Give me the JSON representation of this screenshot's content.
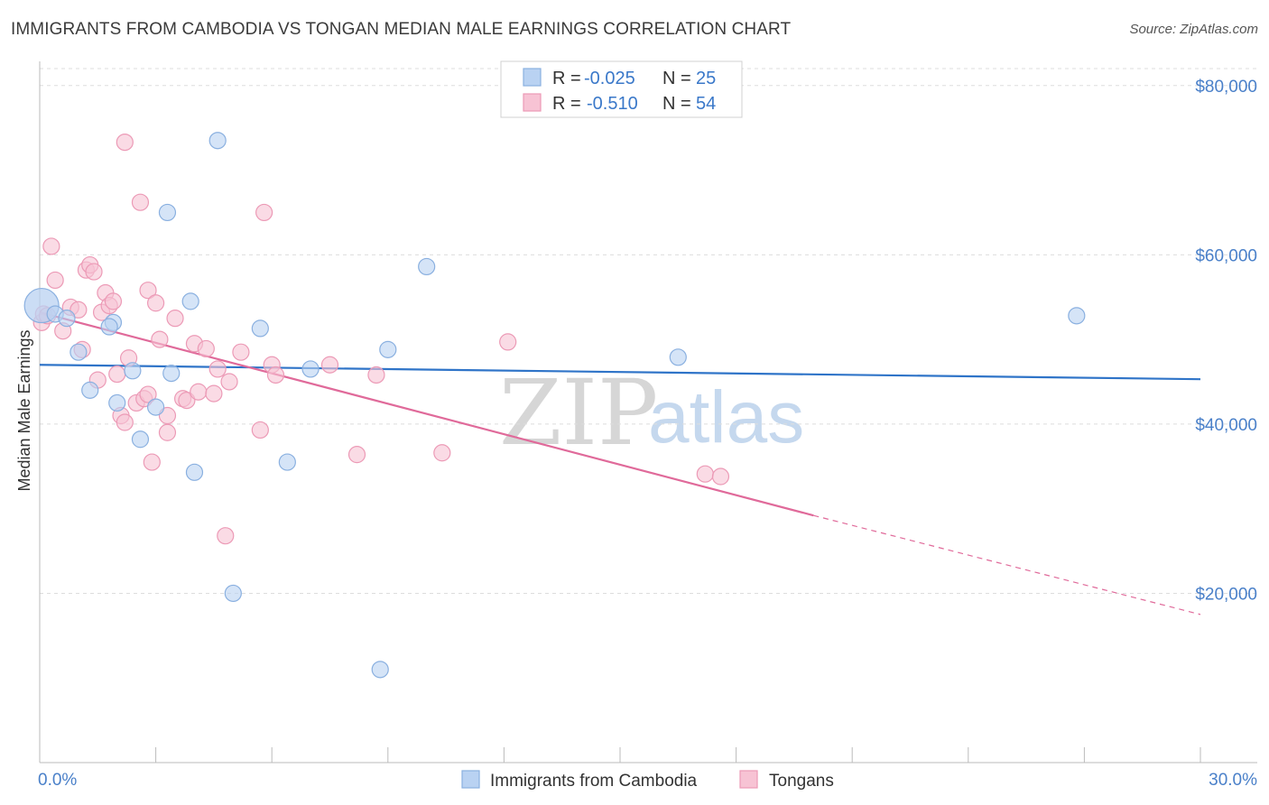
{
  "title": "IMMIGRANTS FROM CAMBODIA VS TONGAN MEDIAN MALE EARNINGS CORRELATION CHART",
  "source": "Source: ZipAtlas.com",
  "watermark": {
    "zip": "ZIP",
    "atlas": "atlas"
  },
  "colors": {
    "blue_fill": "#b9d2f2",
    "blue_stroke": "#8ab0e0",
    "blue_line": "#2f74c8",
    "pink_fill": "#f7c3d4",
    "pink_stroke": "#ec9ab6",
    "pink_line": "#e06a9a",
    "grid": "#dddddd",
    "tick_label": "#4a80c9"
  },
  "legend": {
    "rows": [
      {
        "r_label": "R =",
        "r_value": "-0.025",
        "n_label": "N =",
        "n_value": "25"
      },
      {
        "r_label": "R =",
        "r_value": "-0.510",
        "n_label": "N =",
        "n_value": "54"
      }
    ]
  },
  "bottom_legend": [
    {
      "label": "Immigrants from Cambodia"
    },
    {
      "label": "Tongans"
    }
  ],
  "chart_data": {
    "type": "scatter",
    "title": "IMMIGRANTS FROM CAMBODIA VS TONGAN MEDIAN MALE EARNINGS CORRELATION CHART",
    "xlabel": "",
    "ylabel": "Median Male Earnings",
    "xlim": [
      0,
      30
    ],
    "ylim": [
      0,
      82000
    ],
    "x_tick_labels": [
      "0.0%",
      "30.0%"
    ],
    "y_ticks": [
      20000,
      40000,
      60000,
      80000
    ],
    "y_tick_labels": [
      "$20,000",
      "$40,000",
      "$60,000",
      "$80,000"
    ],
    "grid": true,
    "legend_position": "top-center",
    "series": [
      {
        "name": "Immigrants from Cambodia",
        "points": [
          [
            0.05,
            54000
          ],
          [
            0.4,
            53000
          ],
          [
            0.7,
            52500
          ],
          [
            1.0,
            48500
          ],
          [
            1.3,
            44000
          ],
          [
            1.9,
            52000
          ],
          [
            1.8,
            51500
          ],
          [
            2.0,
            42500
          ],
          [
            2.4,
            46300
          ],
          [
            2.6,
            38200
          ],
          [
            3.0,
            42000
          ],
          [
            3.3,
            65000
          ],
          [
            3.4,
            46000
          ],
          [
            3.9,
            54500
          ],
          [
            4.0,
            34300
          ],
          [
            4.6,
            73500
          ],
          [
            5.0,
            20000
          ],
          [
            5.7,
            51300
          ],
          [
            6.4,
            35500
          ],
          [
            7.0,
            46500
          ],
          [
            8.8,
            11000
          ],
          [
            9.0,
            48800
          ],
          [
            10.0,
            58600
          ],
          [
            16.5,
            47900
          ],
          [
            26.8,
            52800
          ]
        ],
        "trend": {
          "x": [
            0,
            30
          ],
          "y": [
            47000,
            45300
          ]
        }
      },
      {
        "name": "Tongans",
        "points": [
          [
            0.05,
            52000
          ],
          [
            0.1,
            53000
          ],
          [
            0.3,
            61000
          ],
          [
            0.4,
            57000
          ],
          [
            0.6,
            51000
          ],
          [
            0.8,
            53800
          ],
          [
            1.0,
            53500
          ],
          [
            1.1,
            48800
          ],
          [
            1.2,
            58200
          ],
          [
            1.3,
            58800
          ],
          [
            1.4,
            58000
          ],
          [
            1.5,
            45200
          ],
          [
            1.6,
            53200
          ],
          [
            1.7,
            55500
          ],
          [
            1.8,
            54000
          ],
          [
            1.9,
            54500
          ],
          [
            2.0,
            45900
          ],
          [
            2.1,
            41000
          ],
          [
            2.2,
            40200
          ],
          [
            2.2,
            73300
          ],
          [
            2.3,
            47800
          ],
          [
            2.6,
            66200
          ],
          [
            2.5,
            42500
          ],
          [
            2.7,
            43000
          ],
          [
            2.8,
            55800
          ],
          [
            2.8,
            43500
          ],
          [
            2.9,
            35500
          ],
          [
            3.0,
            54300
          ],
          [
            3.1,
            50000
          ],
          [
            3.3,
            39000
          ],
          [
            3.3,
            41000
          ],
          [
            3.5,
            52500
          ],
          [
            3.7,
            43000
          ],
          [
            3.8,
            42800
          ],
          [
            4.0,
            49500
          ],
          [
            4.1,
            43800
          ],
          [
            4.3,
            48900
          ],
          [
            4.5,
            43600
          ],
          [
            4.6,
            46500
          ],
          [
            4.8,
            26800
          ],
          [
            4.9,
            45000
          ],
          [
            5.2,
            48500
          ],
          [
            5.7,
            39300
          ],
          [
            5.8,
            65000
          ],
          [
            6.0,
            47000
          ],
          [
            6.1,
            45800
          ],
          [
            7.5,
            47000
          ],
          [
            8.2,
            36400
          ],
          [
            8.7,
            45800
          ],
          [
            10.4,
            36600
          ],
          [
            12.1,
            49700
          ],
          [
            17.2,
            34100
          ],
          [
            17.6,
            33800
          ],
          [
            0.2,
            52800
          ]
        ],
        "trend_solid": {
          "x": [
            0,
            20
          ],
          "y": [
            53200,
            29200
          ]
        },
        "trend_dashed": {
          "x": [
            20,
            30
          ],
          "y": [
            29200,
            17500
          ]
        }
      }
    ]
  }
}
